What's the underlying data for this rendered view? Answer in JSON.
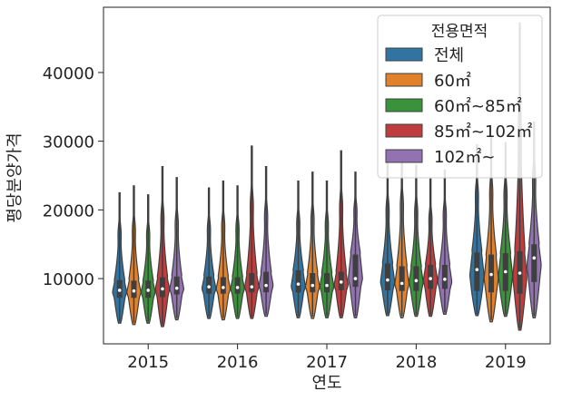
{
  "chart_data": {
    "type": "violin",
    "xlabel": "연도",
    "ylabel": "평당분양가격",
    "categories": [
      "2015",
      "2016",
      "2017",
      "2018",
      "2019"
    ],
    "ylim": [
      500,
      49500
    ],
    "yticks": [
      10000,
      20000,
      30000,
      40000
    ],
    "legend": {
      "title": "전용면적",
      "placement": "top-right"
    },
    "series": [
      {
        "name": "전체",
        "color": "#3274a1",
        "stats": [
          {
            "min": 3500,
            "q1": 7200,
            "median": 8300,
            "q3": 9800,
            "max": 22500,
            "mode": 8000
          },
          {
            "min": 4200,
            "q1": 7800,
            "median": 8800,
            "q3": 10300,
            "max": 23200,
            "mode": 8500
          },
          {
            "min": 4300,
            "q1": 8000,
            "median": 9200,
            "q3": 11200,
            "max": 24200,
            "mode": 8800
          },
          {
            "min": 4600,
            "q1": 8300,
            "median": 9800,
            "q3": 12200,
            "max": 26800,
            "mode": 9500
          },
          {
            "min": 4600,
            "q1": 8200,
            "median": 11300,
            "q3": 13800,
            "max": 29500,
            "mode": 10500
          }
        ]
      },
      {
        "name": "60㎡",
        "color": "#e1812c",
        "stats": [
          {
            "min": 3300,
            "q1": 7200,
            "median": 8200,
            "q3": 9700,
            "max": 23500,
            "mode": 8000
          },
          {
            "min": 4000,
            "q1": 7800,
            "median": 8700,
            "q3": 10200,
            "max": 24200,
            "mode": 8500
          },
          {
            "min": 4200,
            "q1": 8000,
            "median": 9000,
            "q3": 10800,
            "max": 25500,
            "mode": 8800
          },
          {
            "min": 4300,
            "q1": 8200,
            "median": 9300,
            "q3": 11800,
            "max": 28500,
            "mode": 9200
          },
          {
            "min": 3700,
            "q1": 8000,
            "median": 10600,
            "q3": 13500,
            "max": 30500,
            "mode": 10000
          }
        ]
      },
      {
        "name": "60㎡~85㎡",
        "color": "#3a923a",
        "stats": [
          {
            "min": 3500,
            "q1": 7200,
            "median": 8300,
            "q3": 9700,
            "max": 22200,
            "mode": 8000
          },
          {
            "min": 4200,
            "q1": 7800,
            "median": 8700,
            "q3": 10200,
            "max": 23500,
            "mode": 8500
          },
          {
            "min": 4300,
            "q1": 8000,
            "median": 9000,
            "q3": 10800,
            "max": 24200,
            "mode": 8800
          },
          {
            "min": 4500,
            "q1": 8200,
            "median": 9700,
            "q3": 11800,
            "max": 26500,
            "mode": 9500
          },
          {
            "min": 4500,
            "q1": 8200,
            "median": 11000,
            "q3": 13700,
            "max": 29800,
            "mode": 10500
          }
        ]
      },
      {
        "name": "85㎡~102㎡",
        "color": "#c03d3e",
        "stats": [
          {
            "min": 3000,
            "q1": 7300,
            "median": 8500,
            "q3": 10200,
            "max": 26300,
            "mode": 8500
          },
          {
            "min": 4200,
            "q1": 8000,
            "median": 8800,
            "q3": 10800,
            "max": 29300,
            "mode": 8800
          },
          {
            "min": 4300,
            "q1": 8300,
            "median": 9500,
            "q3": 11000,
            "max": 28600,
            "mode": 9000
          },
          {
            "min": 4500,
            "q1": 8500,
            "median": 10000,
            "q3": 12000,
            "max": 24500,
            "mode": 9800
          },
          {
            "min": 2500,
            "q1": 7800,
            "median": 10800,
            "q3": 14000,
            "max": 47200,
            "mode": 10200
          }
        ]
      },
      {
        "name": "102㎡~",
        "color": "#9372b2",
        "stats": [
          {
            "min": 4000,
            "q1": 7700,
            "median": 8600,
            "q3": 10300,
            "max": 24700,
            "mode": 8500
          },
          {
            "min": 4500,
            "q1": 8000,
            "median": 9000,
            "q3": 11000,
            "max": 26300,
            "mode": 9000
          },
          {
            "min": 4300,
            "q1": 8800,
            "median": 10000,
            "q3": 13500,
            "max": 25500,
            "mode": 10000
          },
          {
            "min": 4800,
            "q1": 8500,
            "median": 9900,
            "q3": 12000,
            "max": 25800,
            "mode": 9500
          },
          {
            "min": 4300,
            "q1": 9500,
            "median": 13000,
            "q3": 15000,
            "max": 32800,
            "mode": 12000
          }
        ]
      }
    ]
  }
}
